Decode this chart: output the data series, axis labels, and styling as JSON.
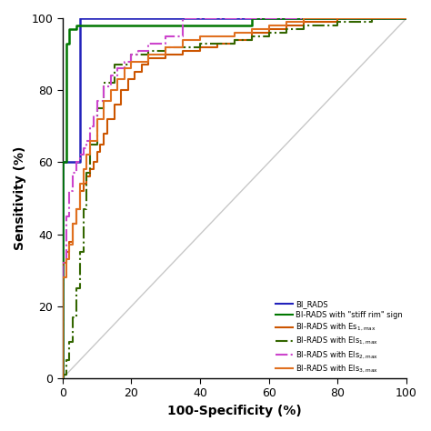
{
  "title": "",
  "xlabel": "100-Specificity (%)",
  "ylabel": "Sensitivity (%)",
  "xlim": [
    0,
    100
  ],
  "ylim": [
    0,
    100
  ],
  "xticks": [
    0,
    20,
    40,
    60,
    80,
    100
  ],
  "yticks": [
    0,
    20,
    40,
    60,
    80,
    100
  ],
  "diagonal_color": "#c8c8c8",
  "curves": {
    "BI_RADS": {
      "color": "#2222bb",
      "linestyle": "solid",
      "linewidth": 1.8,
      "x": [
        0,
        0,
        5,
        5,
        100
      ],
      "y": [
        0,
        60,
        60,
        100,
        100
      ]
    },
    "stiff_rim": {
      "color": "#007700",
      "linestyle": "solid",
      "linewidth": 1.8,
      "x": [
        0,
        0,
        1,
        1,
        2,
        2,
        4,
        4,
        55,
        55,
        80,
        80,
        100
      ],
      "y": [
        0,
        60,
        60,
        93,
        93,
        97,
        97,
        98,
        98,
        100,
        100,
        100,
        100
      ]
    },
    "Es1max": {
      "color": "#cc5500",
      "linestyle": "solid",
      "linewidth": 1.5,
      "x": [
        0,
        0,
        1,
        1,
        2,
        2,
        3,
        3,
        4,
        4,
        5,
        5,
        6,
        6,
        7,
        7,
        8,
        8,
        9,
        9,
        10,
        10,
        11,
        11,
        12,
        12,
        13,
        13,
        15,
        15,
        17,
        17,
        19,
        19,
        21,
        21,
        23,
        23,
        25,
        25,
        30,
        30,
        35,
        35,
        40,
        40,
        45,
        45,
        50,
        50,
        55,
        55,
        60,
        60,
        65,
        65,
        70,
        70,
        80,
        80,
        90,
        90,
        100
      ],
      "y": [
        0,
        32,
        32,
        35,
        35,
        38,
        38,
        43,
        43,
        47,
        47,
        52,
        52,
        54,
        54,
        56,
        56,
        58,
        58,
        60,
        60,
        63,
        63,
        65,
        65,
        68,
        68,
        72,
        72,
        76,
        76,
        80,
        80,
        83,
        83,
        85,
        85,
        87,
        87,
        89,
        89,
        90,
        90,
        91,
        91,
        92,
        92,
        93,
        93,
        94,
        94,
        96,
        96,
        97,
        97,
        98,
        98,
        99,
        99,
        100,
        100,
        100,
        100
      ]
    },
    "Els1max": {
      "color": "#336600",
      "linestyle": "dashdot",
      "linewidth": 1.5,
      "x": [
        0,
        0,
        1,
        1,
        2,
        2,
        3,
        3,
        4,
        4,
        5,
        5,
        6,
        6,
        7,
        7,
        8,
        8,
        10,
        10,
        12,
        12,
        15,
        15,
        20,
        20,
        25,
        25,
        30,
        30,
        35,
        35,
        40,
        40,
        50,
        50,
        55,
        55,
        60,
        60,
        65,
        65,
        70,
        70,
        80,
        80,
        90,
        90,
        100
      ],
      "y": [
        0,
        1,
        1,
        5,
        5,
        10,
        10,
        17,
        17,
        25,
        25,
        35,
        35,
        47,
        47,
        57,
        57,
        65,
        65,
        75,
        75,
        82,
        82,
        87,
        87,
        90,
        90,
        91,
        91,
        92,
        92,
        92,
        92,
        93,
        93,
        94,
        94,
        95,
        95,
        96,
        96,
        97,
        97,
        98,
        98,
        99,
        99,
        100,
        100
      ]
    },
    "Els2max": {
      "color": "#cc44cc",
      "linestyle": "dashdot",
      "linewidth": 1.5,
      "x": [
        0,
        0,
        1,
        1,
        2,
        2,
        3,
        3,
        4,
        4,
        5,
        5,
        6,
        6,
        7,
        7,
        8,
        8,
        9,
        9,
        10,
        10,
        12,
        12,
        14,
        14,
        16,
        16,
        18,
        18,
        20,
        20,
        22,
        22,
        25,
        25,
        30,
        30,
        35,
        35,
        100
      ],
      "y": [
        0,
        32,
        32,
        45,
        45,
        52,
        52,
        57,
        57,
        60,
        60,
        62,
        62,
        64,
        64,
        66,
        66,
        70,
        70,
        73,
        73,
        77,
        77,
        81,
        81,
        84,
        84,
        86,
        86,
        88,
        88,
        90,
        90,
        91,
        91,
        93,
        93,
        95,
        95,
        100,
        100
      ]
    },
    "Els3max": {
      "color": "#e07020",
      "linestyle": "solid",
      "linewidth": 1.5,
      "x": [
        0,
        0,
        1,
        1,
        2,
        2,
        3,
        3,
        4,
        4,
        5,
        5,
        6,
        6,
        7,
        7,
        8,
        8,
        10,
        10,
        12,
        12,
        14,
        14,
        16,
        16,
        18,
        18,
        20,
        20,
        25,
        25,
        30,
        30,
        35,
        35,
        40,
        40,
        50,
        50,
        55,
        55,
        60,
        60,
        65,
        65,
        70,
        70,
        80,
        80,
        90,
        90,
        100
      ],
      "y": [
        0,
        28,
        28,
        33,
        33,
        37,
        37,
        43,
        43,
        47,
        47,
        54,
        54,
        58,
        58,
        62,
        62,
        66,
        66,
        72,
        72,
        77,
        77,
        80,
        80,
        83,
        83,
        86,
        86,
        88,
        88,
        90,
        90,
        92,
        92,
        94,
        94,
        95,
        95,
        96,
        96,
        97,
        97,
        98,
        98,
        99,
        99,
        100,
        100,
        100,
        100,
        100,
        100
      ]
    }
  },
  "legend_labels": [
    "BI_RADS",
    "BI-RADS with \"stiff rim\" sign",
    "BI-RADS with Es1,max",
    "BI-RADS with Els1,max",
    "BI-RADS with Els2,max",
    "BI-RADS with Els3,max"
  ],
  "legend_colors": [
    "#2222bb",
    "#007700",
    "#cc5500",
    "#336600",
    "#cc44cc",
    "#e07020"
  ],
  "legend_linestyles": [
    "solid",
    "solid",
    "solid",
    "dashdot",
    "dashdot",
    "solid"
  ],
  "background_color": "#ffffff"
}
